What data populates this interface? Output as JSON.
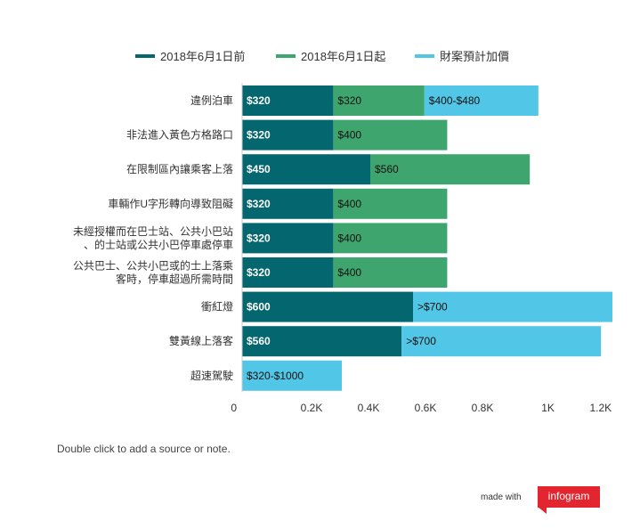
{
  "chart_data": {
    "type": "bar",
    "orientation": "horizontal",
    "stacked": true,
    "legend_position": "top",
    "grid": false,
    "xlim": [
      0,
      1300
    ],
    "x_ticks": [
      {
        "value": 0,
        "label": "0"
      },
      {
        "value": 200,
        "label": "0.2K"
      },
      {
        "value": 400,
        "label": "0.4K"
      },
      {
        "value": 600,
        "label": "0.6K"
      },
      {
        "value": 800,
        "label": "0.8K"
      },
      {
        "value": 1030,
        "label": "1K"
      },
      {
        "value": 1215,
        "label": "1.2K"
      }
    ],
    "categories": [
      [
        "違例泊車"
      ],
      [
        "非法進入黃色方格路口"
      ],
      [
        "在限制區內讓乘客上落"
      ],
      [
        "車輛作U字形轉向導致阻礙"
      ],
      [
        "未經授權而在巴士站、公共小巴站",
        "、的士站或公共小巴停車處停車"
      ],
      [
        "公共巴士、公共小巴或的士上落乘",
        "客時，停車超過所需時間"
      ],
      [
        "衝紅燈"
      ],
      [
        "雙黃線上落客"
      ],
      [
        "超速駕駛"
      ]
    ],
    "series": [
      {
        "name": "2018年6月1日前",
        "color": "#04666f",
        "label_color": "#ffffff",
        "values": [
          320,
          320,
          450,
          320,
          320,
          320,
          600,
          560,
          0
        ],
        "labels": [
          "$320",
          "$320",
          "$450",
          "$320",
          "$320",
          "$320",
          "$600",
          "$560",
          ""
        ]
      },
      {
        "name": "2018年6月1日起",
        "color": "#3ea56f",
        "label_color": "#111111",
        "values": [
          320,
          400,
          560,
          400,
          400,
          400,
          0,
          0,
          0
        ],
        "labels": [
          "$320",
          "$400",
          "$560",
          "$400",
          "$400",
          "$400",
          "",
          "",
          ""
        ]
      },
      {
        "name": "財案預計加價",
        "color": "#52c6e6",
        "label_color": "#111111",
        "values": [
          400,
          0,
          0,
          0,
          0,
          0,
          700,
          700,
          350
        ],
        "labels": [
          "$400-$480",
          "",
          "",
          "",
          "",
          "",
          ">$700",
          ">$700",
          "$320-$1000"
        ]
      }
    ]
  },
  "note": "Double click to add a source or note.",
  "branding": {
    "made_with": "made with",
    "logo": "infogram"
  }
}
